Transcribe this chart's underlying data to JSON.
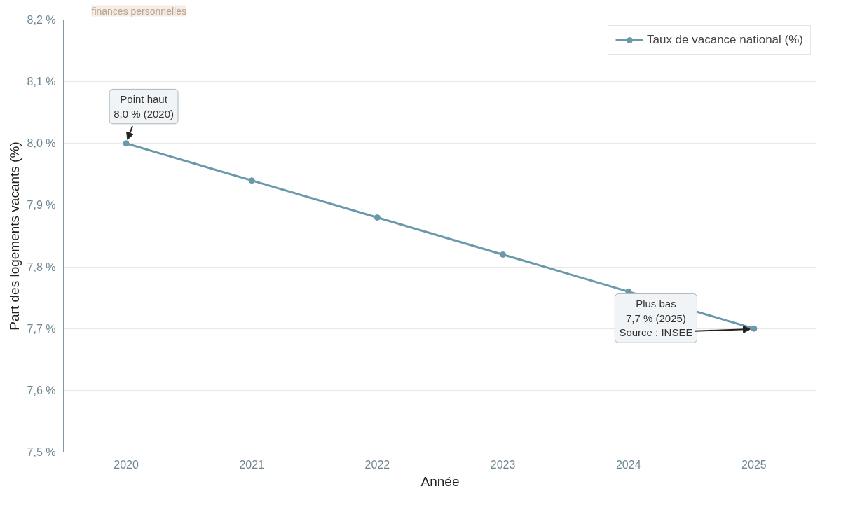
{
  "chart_data": {
    "type": "line",
    "subtitle": "finances personnelles",
    "xlabel": "Année",
    "ylabel": "Part des logements vacants (%)",
    "x": [
      2020,
      2021,
      2022,
      2023,
      2024,
      2025
    ],
    "series": [
      {
        "name": "Taux de vacance national (%)",
        "color": "#6a9aaa",
        "values": [
          8.0,
          7.94,
          7.88,
          7.82,
          7.76,
          7.7
        ]
      }
    ],
    "xlim": [
      2019.5,
      2025.5
    ],
    "xticks": [
      2020,
      2021,
      2022,
      2023,
      2024,
      2025
    ],
    "ylim": [
      7.5,
      8.2
    ],
    "yticks": [
      {
        "value": 7.5,
        "label": "7,5 %"
      },
      {
        "value": 7.6,
        "label": "7,6 %"
      },
      {
        "value": 7.7,
        "label": "7,7 %"
      },
      {
        "value": 7.8,
        "label": "7,8 %"
      },
      {
        "value": 7.9,
        "label": "7,9 %"
      },
      {
        "value": 8.0,
        "label": "8,0 %"
      },
      {
        "value": 8.1,
        "label": "8,1 %"
      },
      {
        "value": 8.2,
        "label": "8,2 %"
      }
    ],
    "annotations": [
      {
        "text": "Point haut\n8,0 % (2020)",
        "x": 2020,
        "y": 8.0
      },
      {
        "text": "Plus bas\n7,7 % (2025)\nSource : INSEE",
        "x": 2025,
        "y": 7.7
      }
    ],
    "grid": "y",
    "legend": "top right",
    "marker": "circle",
    "line_style": "solid"
  }
}
